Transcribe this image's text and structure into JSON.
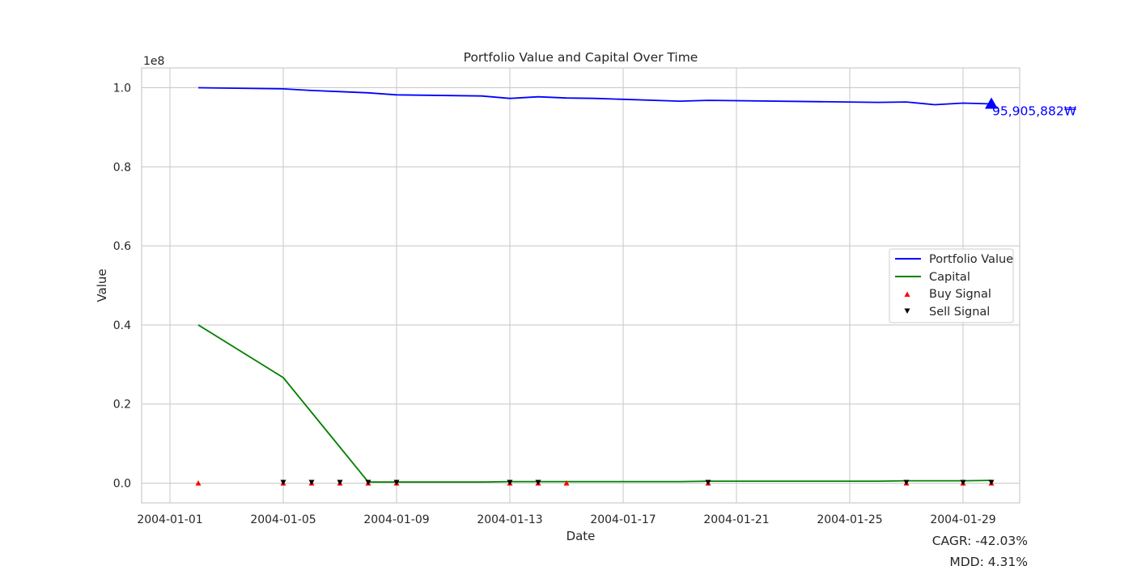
{
  "chart_data": {
    "type": "line",
    "title": "Portfolio Value and Capital Over Time",
    "xlabel": "Date",
    "ylabel": "Value",
    "y_offset_label": "1e8",
    "y_scale": 100000000,
    "grid": true,
    "legend_position": "center-right",
    "xlim": [
      "2003-12-31",
      "2004-01-31"
    ],
    "ylim": [
      -5000000,
      105000000
    ],
    "x_ticks": [
      "2004-01-01",
      "2004-01-05",
      "2004-01-09",
      "2004-01-13",
      "2004-01-17",
      "2004-01-21",
      "2004-01-25",
      "2004-01-29"
    ],
    "y_ticks": [
      0,
      20000000,
      40000000,
      60000000,
      80000000,
      100000000
    ],
    "y_tick_labels": [
      "0.0",
      "0.2",
      "0.4",
      "0.6",
      "0.8",
      "1.0"
    ],
    "dates": [
      "2004-01-02",
      "2004-01-05",
      "2004-01-06",
      "2004-01-07",
      "2004-01-08",
      "2004-01-09",
      "2004-01-12",
      "2004-01-13",
      "2004-01-14",
      "2004-01-15",
      "2004-01-16",
      "2004-01-19",
      "2004-01-20",
      "2004-01-26",
      "2004-01-27",
      "2004-01-28",
      "2004-01-29",
      "2004-01-30"
    ],
    "series": [
      {
        "name": "Portfolio Value",
        "color": "#0000ff",
        "values": [
          100000000,
          99700000,
          99300000,
          99000000,
          98700000,
          98200000,
          97900000,
          97300000,
          97700000,
          97400000,
          97300000,
          96600000,
          96800000,
          96300000,
          96400000,
          95700000,
          96100000,
          95905882
        ]
      },
      {
        "name": "Capital",
        "color": "#008000",
        "values": [
          40000000,
          26700000,
          17900000,
          9100000,
          300000,
          300000,
          300000,
          400000,
          400000,
          400000,
          400000,
          400000,
          500000,
          500000,
          600000,
          600000,
          600000,
          700000
        ]
      }
    ],
    "signals": {
      "buy": {
        "name": "Buy Signal",
        "color": "#ff0000",
        "dates": [
          "2004-01-02",
          "2004-01-05",
          "2004-01-06",
          "2004-01-07",
          "2004-01-08",
          "2004-01-09",
          "2004-01-13",
          "2004-01-14",
          "2004-01-15",
          "2004-01-20",
          "2004-01-27",
          "2004-01-29",
          "2004-01-30"
        ],
        "values": [
          0,
          0,
          0,
          0,
          0,
          0,
          0,
          0,
          0,
          0,
          0,
          0,
          0
        ]
      },
      "sell": {
        "name": "Sell Signal",
        "color": "#000000",
        "dates": [
          "2004-01-05",
          "2004-01-06",
          "2004-01-07",
          "2004-01-08",
          "2004-01-09",
          "2004-01-13",
          "2004-01-14",
          "2004-01-20",
          "2004-01-27",
          "2004-01-29",
          "2004-01-30"
        ],
        "values": [
          0,
          0,
          0,
          0,
          0,
          0,
          0,
          0,
          0,
          0,
          0
        ]
      }
    },
    "final_marker": {
      "date": "2004-01-30",
      "value": 95905882,
      "label": "95,905,882₩",
      "color": "#0000ff"
    },
    "stats": {
      "cagr": "CAGR: -42.03%",
      "mdd": "MDD: 4.31%"
    }
  }
}
